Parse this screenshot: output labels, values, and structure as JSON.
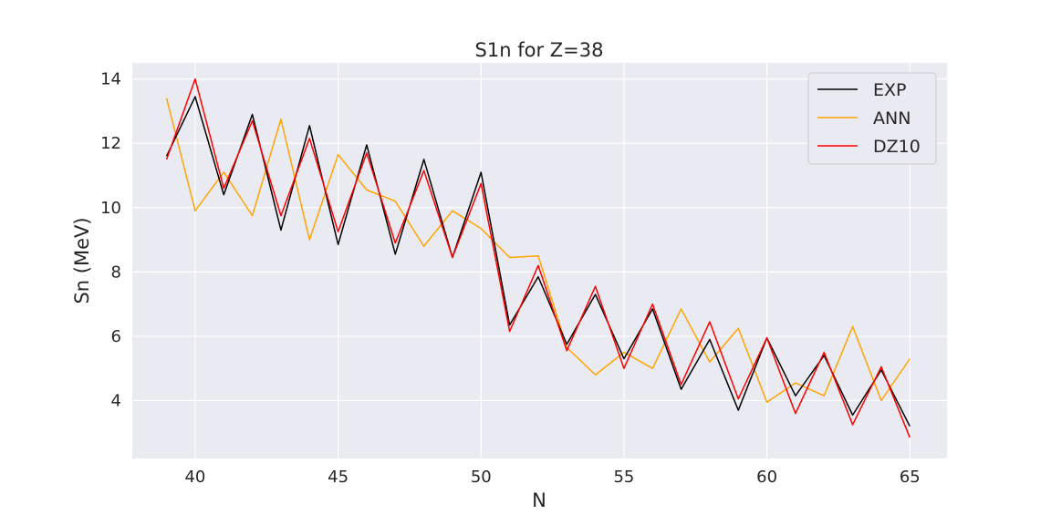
{
  "chart_data": {
    "type": "line",
    "title": "S1n for Z=38",
    "xlabel": "N",
    "ylabel": "Sn (MeV)",
    "xlim": [
      37.8,
      66.3
    ],
    "ylim": [
      2.2,
      14.5
    ],
    "xticks": [
      40,
      45,
      50,
      55,
      60,
      65
    ],
    "yticks": [
      4,
      6,
      8,
      10,
      12,
      14
    ],
    "grid": true,
    "legend_position": "top-right",
    "x": [
      39,
      40,
      41,
      42,
      43,
      44,
      45,
      46,
      47,
      48,
      49,
      50,
      51,
      52,
      53,
      54,
      55,
      56,
      57,
      58,
      59,
      60,
      61,
      62,
      63,
      64,
      65
    ],
    "series": [
      {
        "name": "EXP",
        "color": "#000000",
        "values": [
          11.6,
          13.45,
          10.4,
          12.9,
          9.3,
          12.55,
          8.85,
          11.95,
          8.55,
          11.5,
          8.45,
          11.1,
          6.35,
          7.85,
          5.75,
          7.3,
          5.3,
          6.85,
          4.35,
          5.9,
          3.7,
          5.95,
          4.15,
          5.4,
          3.55,
          4.95,
          3.2
        ]
      },
      {
        "name": "ANN",
        "color": "#ffa500",
        "values": [
          13.4,
          9.9,
          11.1,
          9.75,
          12.75,
          9.0,
          11.65,
          10.55,
          10.2,
          8.8,
          9.9,
          9.35,
          8.45,
          8.5,
          5.65,
          4.8,
          5.5,
          5.0,
          6.85,
          5.2,
          6.25,
          3.95,
          4.55,
          4.15,
          6.3,
          4.0,
          5.3
        ]
      },
      {
        "name": "DZ10",
        "color": "#ff0000",
        "values": [
          11.5,
          14.0,
          10.6,
          12.7,
          9.75,
          12.15,
          9.25,
          11.7,
          8.9,
          11.15,
          8.45,
          10.75,
          6.15,
          8.2,
          5.55,
          7.55,
          5.0,
          7.0,
          4.5,
          6.45,
          4.05,
          5.95,
          3.6,
          5.5,
          3.25,
          5.05,
          2.85
        ]
      }
    ]
  }
}
